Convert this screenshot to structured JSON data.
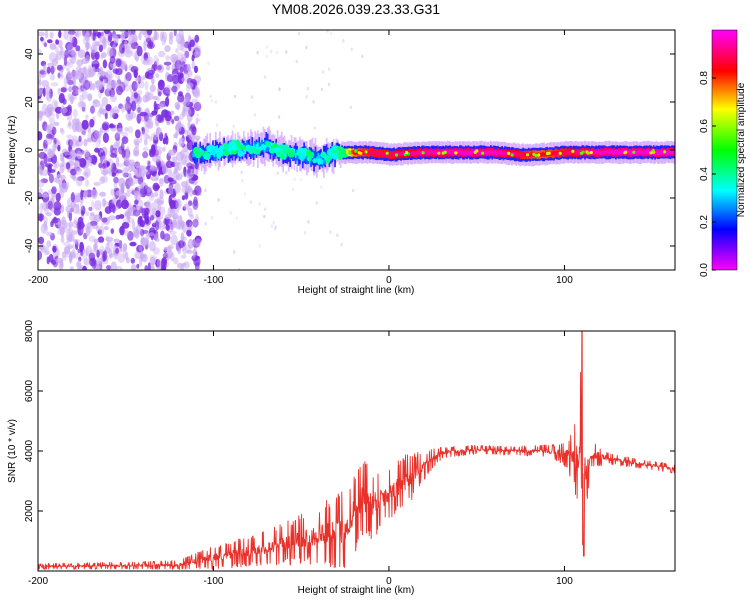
{
  "title": "YM08.2026.039.23.33.G31",
  "colors": {
    "background": "#ffffff",
    "axis": "#000000",
    "snr_line": "#e8312a",
    "noise_purple": "#7a2be0"
  },
  "chart_data": [
    {
      "type": "heatmap",
      "title": "YM08.2026.039.23.33.G31",
      "xlabel": "Height of straight line (km)",
      "ylabel": "Frequency (Hz)",
      "xlim": [
        -200,
        163
      ],
      "ylim": [
        -50,
        50
      ],
      "xticks": [
        -200,
        -100,
        0,
        100
      ],
      "yticks": [
        -40,
        -20,
        0,
        20,
        40
      ],
      "colorbar": {
        "label": "Normalized spectral amplitude",
        "range": [
          0,
          1
        ],
        "ticks": [
          "0.0",
          "0.2",
          "0.4",
          "0.6",
          "0.8"
        ],
        "colormap": "hsv (magenta-blue-cyan-green-yellow-red-magenta)"
      },
      "noise_region": {
        "x_from": -200,
        "x_to": -112,
        "amplitude": 0.1
      },
      "ridge": [
        {
          "x": -112,
          "freq": -2,
          "amp": 0.3
        },
        {
          "x": -100,
          "freq": -1,
          "amp": 0.32
        },
        {
          "x": -90,
          "freq": 1,
          "amp": 0.35
        },
        {
          "x": -80,
          "freq": 0,
          "amp": 0.33
        },
        {
          "x": -70,
          "freq": 2,
          "amp": 0.34
        },
        {
          "x": -60,
          "freq": -1,
          "amp": 0.33
        },
        {
          "x": -50,
          "freq": -2,
          "amp": 0.32
        },
        {
          "x": -40,
          "freq": -4,
          "amp": 0.3
        },
        {
          "x": -30,
          "freq": -1,
          "amp": 0.45
        },
        {
          "x": -20,
          "freq": -1,
          "amp": 0.85
        },
        {
          "x": -10,
          "freq": -1,
          "amp": 0.9
        },
        {
          "x": 0,
          "freq": -2,
          "amp": 0.9
        },
        {
          "x": 20,
          "freq": -1,
          "amp": 0.95
        },
        {
          "x": 40,
          "freq": -1,
          "amp": 0.97
        },
        {
          "x": 60,
          "freq": -1,
          "amp": 0.97
        },
        {
          "x": 75,
          "freq": -2,
          "amp": 0.9
        },
        {
          "x": 85,
          "freq": -2,
          "amp": 0.85
        },
        {
          "x": 100,
          "freq": -1,
          "amp": 0.9
        },
        {
          "x": 110,
          "freq": -1,
          "amp": 0.95
        },
        {
          "x": 130,
          "freq": -1,
          "amp": 0.98
        },
        {
          "x": 163,
          "freq": -1,
          "amp": 0.98
        }
      ]
    },
    {
      "type": "line",
      "title": "",
      "xlabel": "Height of straight line (km)",
      "ylabel": "SNR (10 * v/v)",
      "xlim": [
        -200,
        163
      ],
      "ylim": [
        0,
        8000
      ],
      "xticks": [
        -200,
        -100,
        0,
        100
      ],
      "yticks": [
        2000,
        4000,
        6000,
        8000
      ],
      "series": [
        {
          "name": "SNR",
          "envelope": [
            {
              "x": -200,
              "y": 150,
              "spread": 100
            },
            {
              "x": -150,
              "y": 180,
              "spread": 120
            },
            {
              "x": -120,
              "y": 200,
              "spread": 150
            },
            {
              "x": -100,
              "y": 450,
              "spread": 400
            },
            {
              "x": -80,
              "y": 650,
              "spread": 500
            },
            {
              "x": -60,
              "y": 900,
              "spread": 700
            },
            {
              "x": -40,
              "y": 1200,
              "spread": 1000
            },
            {
              "x": -25,
              "y": 1400,
              "spread": 1400
            },
            {
              "x": -15,
              "y": 2500,
              "spread": 1500
            },
            {
              "x": -10,
              "y": 2200,
              "spread": 1200
            },
            {
              "x": 0,
              "y": 2600,
              "spread": 900
            },
            {
              "x": 10,
              "y": 3000,
              "spread": 900
            },
            {
              "x": 20,
              "y": 3500,
              "spread": 500
            },
            {
              "x": 30,
              "y": 3950,
              "spread": 200
            },
            {
              "x": 50,
              "y": 4050,
              "spread": 150
            },
            {
              "x": 70,
              "y": 4000,
              "spread": 150
            },
            {
              "x": 90,
              "y": 4000,
              "spread": 200
            },
            {
              "x": 100,
              "y": 3900,
              "spread": 400
            },
            {
              "x": 105,
              "y": 3800,
              "spread": 900
            },
            {
              "x": 108,
              "y": 3600,
              "spread": 2000
            },
            {
              "x": 110,
              "y": 3500,
              "spread": 4000
            },
            {
              "x": 112,
              "y": 3500,
              "spread": 1800
            },
            {
              "x": 115,
              "y": 3900,
              "spread": 500
            },
            {
              "x": 125,
              "y": 3750,
              "spread": 200
            },
            {
              "x": 140,
              "y": 3600,
              "spread": 150
            },
            {
              "x": 163,
              "y": 3400,
              "spread": 150
            }
          ],
          "peak": {
            "x": 110,
            "y": 8000
          },
          "trough": {
            "x": 111,
            "y": 500
          }
        }
      ]
    }
  ]
}
